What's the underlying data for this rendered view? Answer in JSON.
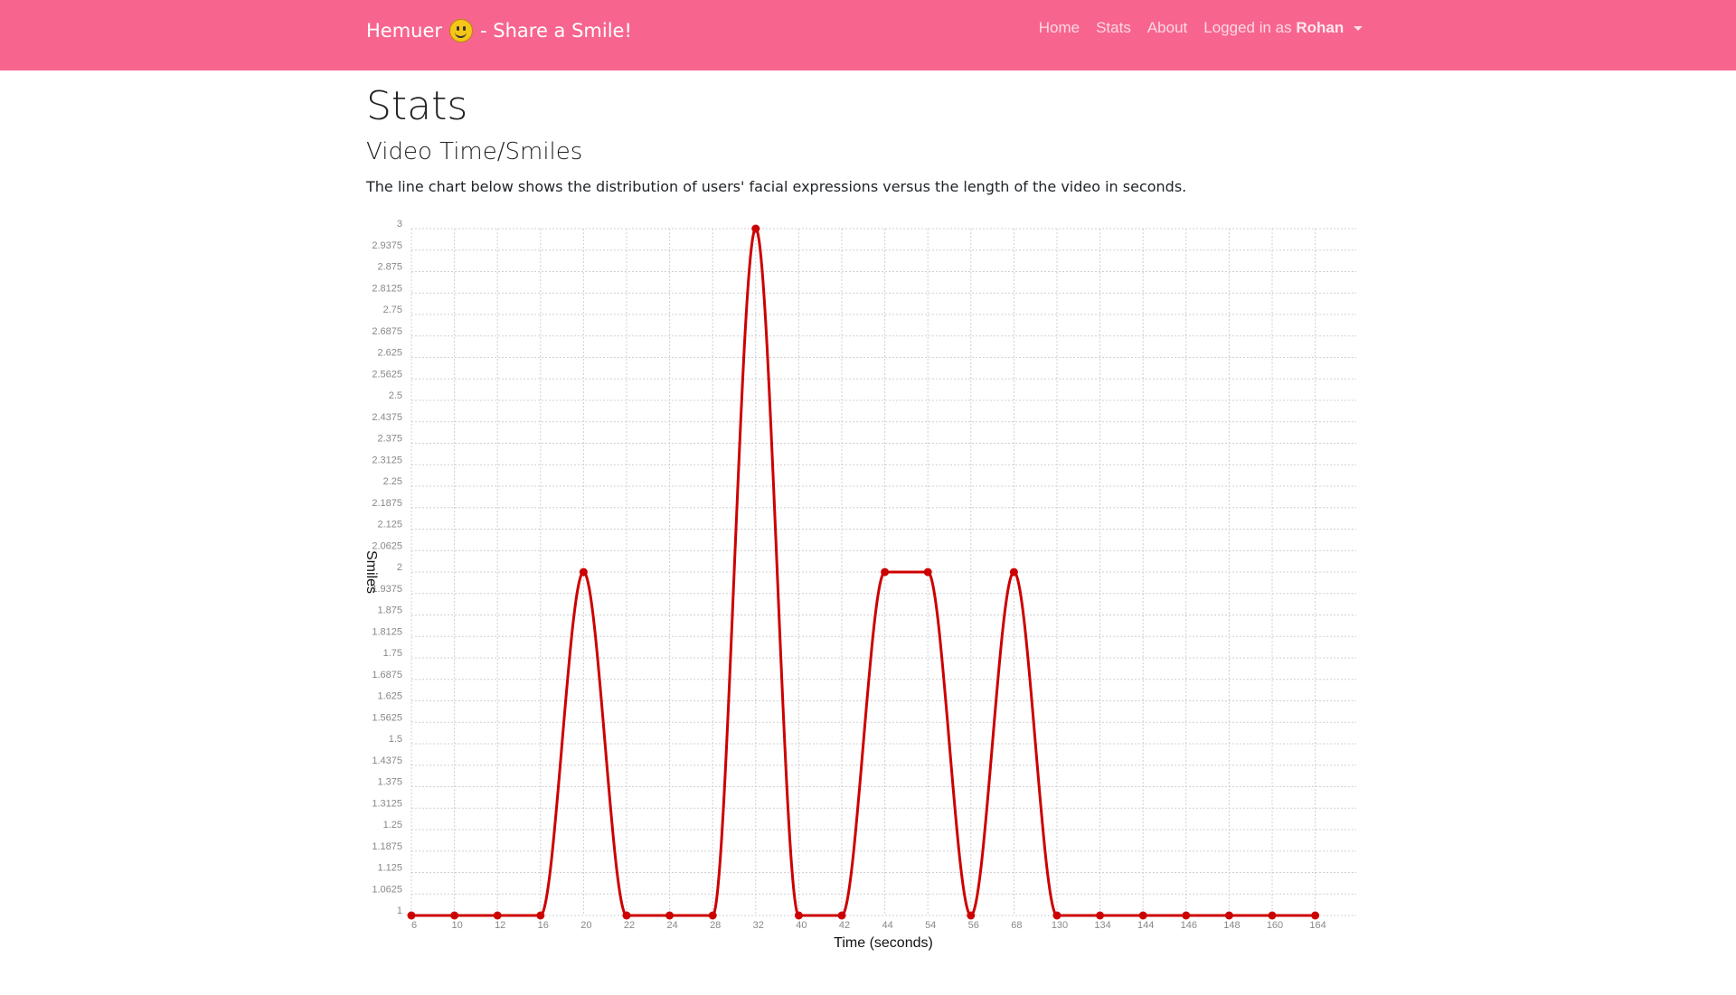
{
  "navbar": {
    "brand_before": "Hemuer",
    "brand_after": "- Share a Smile!",
    "links": [
      "Home",
      "Stats",
      "About"
    ],
    "user_prefix": "Logged in as",
    "user_name": "Rohan",
    "bg_color": "#f7658e"
  },
  "page": {
    "title": "Stats",
    "subtitle": "Video Time/Smiles",
    "description": "The line chart below shows the distribution of users' facial expressions versus the length of the video in seconds."
  },
  "chart_data": {
    "type": "line",
    "xlabel": "Time (seconds)",
    "ylabel": "Smiles",
    "categories": [
      "6",
      "10",
      "12",
      "16",
      "20",
      "22",
      "24",
      "28",
      "32",
      "40",
      "42",
      "44",
      "54",
      "56",
      "68",
      "130",
      "134",
      "144",
      "146",
      "148",
      "160",
      "164"
    ],
    "series": [
      {
        "values": [
          1,
          1,
          1,
          1,
          2,
          1,
          1,
          1,
          3,
          1,
          1,
          2,
          2,
          1,
          2,
          1,
          1,
          1,
          1,
          1,
          1,
          1
        ],
        "color": "#cc0000"
      }
    ],
    "ylim": [
      1,
      3
    ],
    "yticks": [
      "1",
      "1.0625",
      "1.125",
      "1.1875",
      "1.25",
      "1.3125",
      "1.375",
      "1.4375",
      "1.5",
      "1.5625",
      "1.625",
      "1.6875",
      "1.75",
      "1.8125",
      "1.875",
      "1.9375",
      "2",
      "2.0625",
      "2.125",
      "2.1875",
      "2.25",
      "2.3125",
      "2.375",
      "2.4375",
      "2.5",
      "2.5625",
      "2.625",
      "2.6875",
      "2.75",
      "2.8125",
      "2.875",
      "2.9375",
      "3"
    ],
    "grid": true
  }
}
